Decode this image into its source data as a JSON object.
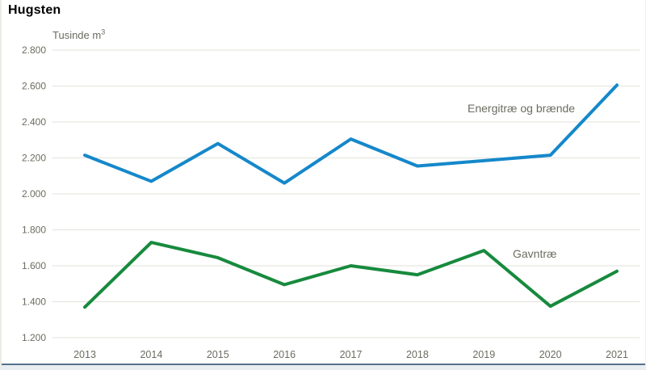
{
  "header": {
    "title": "Hugsten"
  },
  "chart_data": {
    "type": "line",
    "title": "Hugsten",
    "unit_label": "Tusinde m",
    "unit_exponent": "3",
    "categories": [
      "2013",
      "2014",
      "2015",
      "2016",
      "2017",
      "2018",
      "2019",
      "2020",
      "2021"
    ],
    "series": [
      {
        "name": "Energitræ og brænde",
        "color": "#1588ca",
        "values": [
          2215,
          2070,
          2280,
          2060,
          2305,
          2155,
          2185,
          2215,
          2605
        ]
      },
      {
        "name": "Gavntræ",
        "color": "#178a3d",
        "values": [
          1370,
          1730,
          1645,
          1495,
          1600,
          1550,
          1685,
          1375,
          1570
        ]
      }
    ],
    "y_axis": {
      "min": 1200,
      "max": 2800,
      "step": 200,
      "tick_labels": [
        "2.800",
        "2.600",
        "2.400",
        "2.200",
        "2.000",
        "1.800",
        "1.600",
        "1.400",
        "1.200"
      ]
    },
    "x_axis": {
      "tick_labels": [
        "2013",
        "2014",
        "2015",
        "2016",
        "2017",
        "2018",
        "2019",
        "2020",
        "2021"
      ]
    },
    "grid": true,
    "legend_position": "inline-annotations"
  },
  "colors": {
    "series_blue": "#1588ca",
    "series_green": "#178a3d",
    "axis_text": "#6c6c61",
    "gridline": "#e3e2db",
    "footer_line": "#54728c",
    "footer_fill": "#e9eef1"
  }
}
